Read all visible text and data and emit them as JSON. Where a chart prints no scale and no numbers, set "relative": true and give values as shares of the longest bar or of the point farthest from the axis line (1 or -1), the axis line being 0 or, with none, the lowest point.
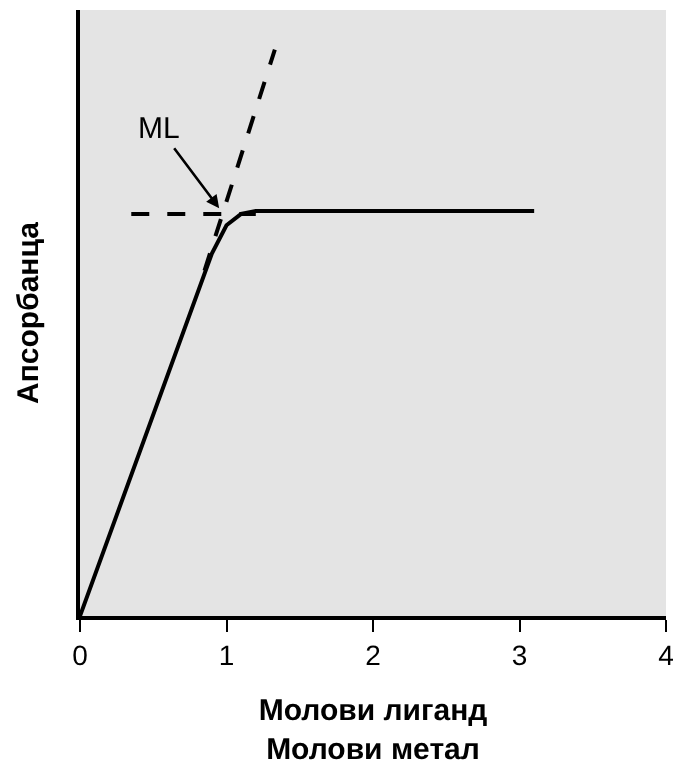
{
  "chart_data": {
    "type": "line",
    "relative": true,
    "xlabel": "Молови лиганд\nМолови метал",
    "ylabel": "Апсорбанца",
    "xlim": [
      0,
      4
    ],
    "xticks": [
      0,
      1,
      2,
      3,
      4
    ],
    "grid": false,
    "marker": "none",
    "series": [
      {
        "color": "#000000",
        "line_style": "solid",
        "x": [
          0,
          0.9,
          1.0,
          1.1,
          1.2,
          3.1
        ],
        "values": [
          0,
          0.64,
          0.69,
          0.71,
          0.715,
          0.715
        ]
      },
      {
        "color": "#000000",
        "line_style": "dashed",
        "x": [
          0.85,
          1.33
        ],
        "values": [
          0.61,
          1.0
        ]
      },
      {
        "color": "#000000",
        "line_style": "dashed",
        "x": [
          0.35,
          1.2
        ],
        "values": [
          0.71,
          0.71
        ]
      }
    ],
    "annotations": [
      {
        "text": "ML",
        "x": 0.95,
        "y": 0.72
      }
    ]
  }
}
